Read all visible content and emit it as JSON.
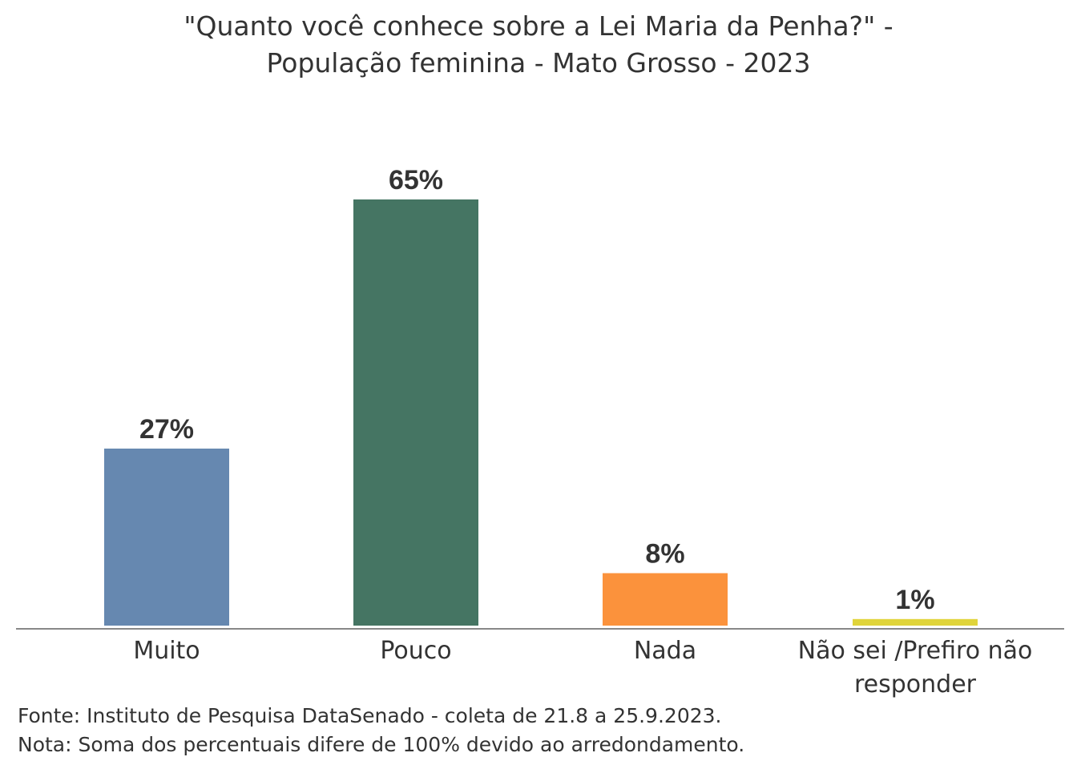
{
  "chart_data": {
    "type": "bar",
    "title_lines": [
      "\"Quanto você conhece sobre a Lei Maria da Penha?\" -",
      "População feminina - Mato Grosso - 2023"
    ],
    "categories": [
      [
        "Muito"
      ],
      [
        "Pouco"
      ],
      [
        "Nada"
      ],
      [
        "Não sei /Prefiro não",
        "responder"
      ]
    ],
    "values": [
      27,
      65,
      8,
      1
    ],
    "value_labels": [
      "27%",
      "65%",
      "8%",
      "1%"
    ],
    "colors": [
      "#6688b0",
      "#457563",
      "#fb923c",
      "#e0d43a"
    ],
    "ylim": [
      0,
      65
    ],
    "xlabel": "",
    "ylabel": "",
    "grid": false,
    "legend": "none"
  },
  "footer": {
    "source": "Fonte: Instituto de Pesquisa DataSenado - coleta de 21.8 a 25.9.2023.",
    "note": "Nota: Soma dos percentuais difere de 100% devido ao arredondamento."
  }
}
